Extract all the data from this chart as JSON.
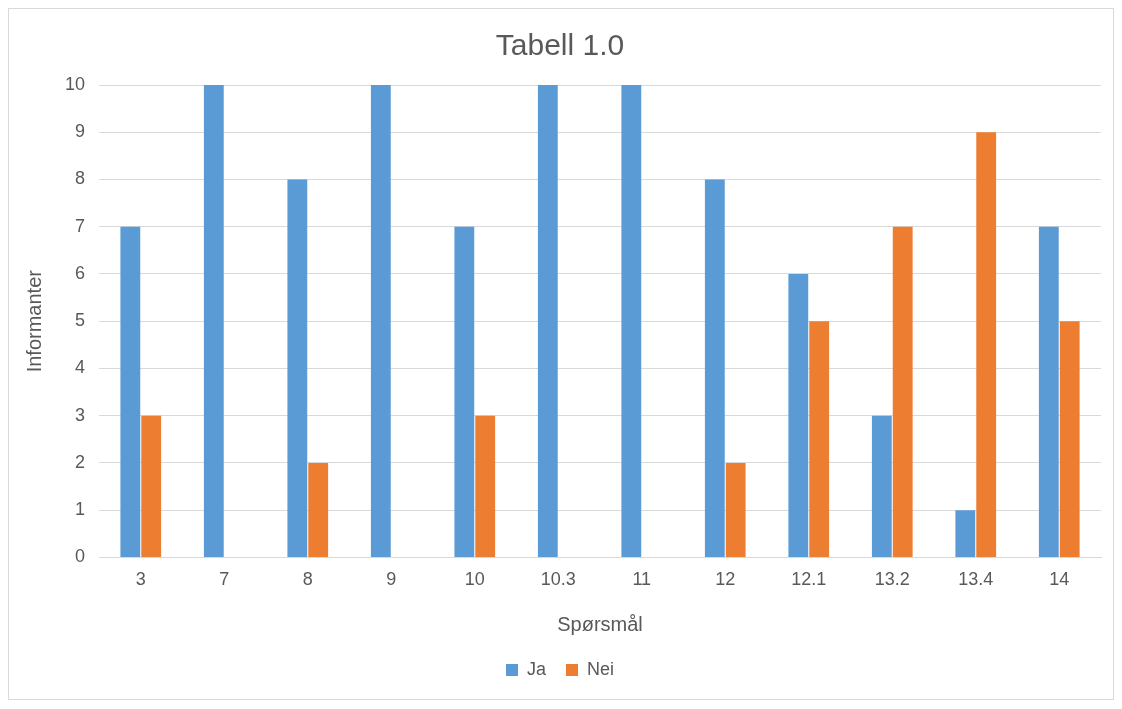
{
  "chart_data": {
    "type": "bar",
    "title": "Tabell 1.0",
    "xlabel": "Spørsmål",
    "ylabel": "Informanter",
    "categories": [
      "3",
      "7",
      "8",
      "9",
      "10",
      "10.3",
      "11",
      "12",
      "12.1",
      "13.2",
      "13.4",
      "14"
    ],
    "series": [
      {
        "name": "Ja",
        "color": "#5b9bd5",
        "values": [
          7,
          10,
          8,
          10,
          7,
          10,
          10,
          8,
          6,
          3,
          1,
          7
        ]
      },
      {
        "name": "Nei",
        "color": "#ed7d31",
        "values": [
          3,
          0,
          2,
          0,
          3,
          0,
          0,
          2,
          5,
          7,
          9,
          5
        ]
      }
    ],
    "ylim": [
      0,
      10
    ],
    "yticks": [
      0,
      1,
      2,
      3,
      4,
      5,
      6,
      7,
      8,
      9,
      10
    ],
    "grid": "y",
    "legend": "bottom"
  }
}
